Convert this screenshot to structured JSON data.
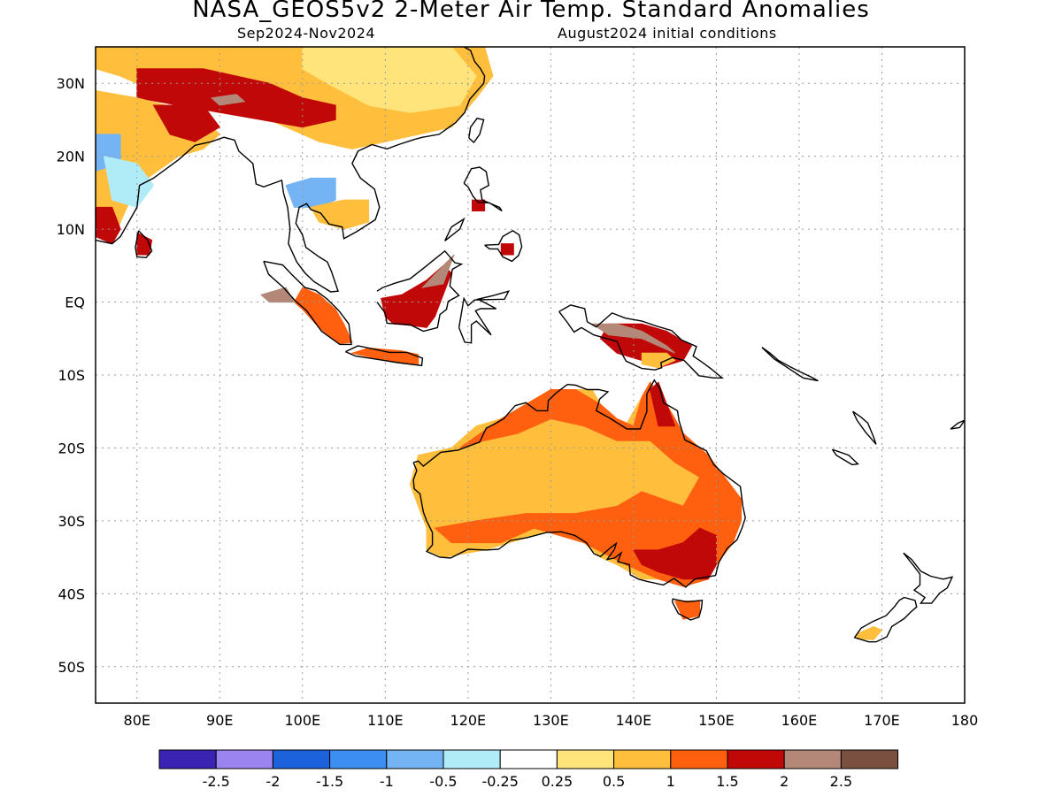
{
  "title": "NASA_GEOS5v2 2-Meter Air Temp. Standard Anomalies",
  "subtitle_left": "Sep2024-Nov2024",
  "subtitle_right": "August2024 initial conditions",
  "map": {
    "lon_range": [
      75,
      180
    ],
    "lat_range": [
      -55,
      35
    ],
    "lat_labels": [
      "30N",
      "20N",
      "10N",
      "EQ",
      "10S",
      "20S",
      "30S",
      "40S",
      "50S"
    ],
    "lat_values": [
      30,
      20,
      10,
      0,
      -10,
      -20,
      -30,
      -40,
      -50
    ],
    "lon_labels": [
      "80E",
      "90E",
      "100E",
      "110E",
      "120E",
      "130E",
      "140E",
      "150E",
      "160E",
      "170E",
      "180"
    ],
    "lon_values": [
      80,
      90,
      100,
      110,
      120,
      130,
      140,
      150,
      160,
      170,
      180
    ],
    "grid": true
  },
  "legend": {
    "colors": [
      "#3a22b2",
      "#9b84f0",
      "#1c62dc",
      "#3c8ef0",
      "#74b4f4",
      "#b0ecf8",
      "#ffffff",
      "#ffe47c",
      "#ffbe3c",
      "#ff6010",
      "#c00808",
      "#b48878",
      "#7a5040"
    ],
    "labels": [
      "-2.5",
      "-2",
      "-1.5",
      "-1",
      "-0.5",
      "-0.25",
      "0.25",
      "0.5",
      "1",
      "1.5",
      "2",
      "2.5"
    ]
  },
  "regions": [
    {
      "name": "australia-interior",
      "color": "#ffbe3c",
      "points": [
        [
          114,
          -21
        ],
        [
          118,
          -20
        ],
        [
          121,
          -17
        ],
        [
          124,
          -16
        ],
        [
          127,
          -14
        ],
        [
          130,
          -12
        ],
        [
          132,
          -12
        ],
        [
          135,
          -12
        ],
        [
          136,
          -14
        ],
        [
          137,
          -16
        ],
        [
          139,
          -17
        ],
        [
          141,
          -13
        ],
        [
          142,
          -11
        ],
        [
          143,
          -13
        ],
        [
          145,
          -16
        ],
        [
          146,
          -19
        ],
        [
          149,
          -21
        ],
        [
          151,
          -24
        ],
        [
          153,
          -27
        ],
        [
          153,
          -30
        ],
        [
          152,
          -33
        ],
        [
          150,
          -36
        ],
        [
          149,
          -38
        ],
        [
          146,
          -39
        ],
        [
          144,
          -38
        ],
        [
          141,
          -38
        ],
        [
          138,
          -36
        ],
        [
          136,
          -35
        ],
        [
          134,
          -33
        ],
        [
          131,
          -31
        ],
        [
          128,
          -32
        ],
        [
          125,
          -33
        ],
        [
          122,
          -34
        ],
        [
          117,
          -35
        ],
        [
          115,
          -34
        ],
        [
          115,
          -31
        ],
        [
          114,
          -28
        ],
        [
          113,
          -25
        ]
      ]
    },
    {
      "name": "australia-orange-north",
      "color": "#ff6010",
      "points": [
        [
          124,
          -16
        ],
        [
          127,
          -14
        ],
        [
          130,
          -12
        ],
        [
          133,
          -12
        ],
        [
          136,
          -14
        ],
        [
          138,
          -16
        ],
        [
          140,
          -17
        ],
        [
          141,
          -13
        ],
        [
          142,
          -11
        ],
        [
          144,
          -14
        ],
        [
          146,
          -18
        ],
        [
          148,
          -21
        ],
        [
          146,
          -22
        ],
        [
          142,
          -19
        ],
        [
          138,
          -19
        ],
        [
          134,
          -17
        ],
        [
          130,
          -16
        ],
        [
          126,
          -18
        ],
        [
          122,
          -19
        ],
        [
          119,
          -20
        ]
      ]
    },
    {
      "name": "australia-orange-east",
      "color": "#ff6010",
      "points": [
        [
          142,
          -19
        ],
        [
          146,
          -18
        ],
        [
          149,
          -21
        ],
        [
          151,
          -24
        ],
        [
          153,
          -27
        ],
        [
          153,
          -30
        ],
        [
          152,
          -33
        ],
        [
          150,
          -36
        ],
        [
          149,
          -38
        ],
        [
          146,
          -39
        ],
        [
          143,
          -38
        ],
        [
          139,
          -36
        ],
        [
          134,
          -33
        ],
        [
          128,
          -31
        ],
        [
          124,
          -33
        ],
        [
          118,
          -33
        ],
        [
          116,
          -31
        ],
        [
          121,
          -30
        ],
        [
          127,
          -29
        ],
        [
          133,
          -29
        ],
        [
          138,
          -28
        ],
        [
          141,
          -26
        ],
        [
          146,
          -28
        ],
        [
          148,
          -24
        ],
        [
          145,
          -22
        ]
      ]
    },
    {
      "name": "australia-red-southeast",
      "color": "#c00808",
      "points": [
        [
          140,
          -34
        ],
        [
          143,
          -34
        ],
        [
          146,
          -33
        ],
        [
          148,
          -31
        ],
        [
          150,
          -32
        ],
        [
          150,
          -36
        ],
        [
          149,
          -38
        ],
        [
          146,
          -38
        ],
        [
          143,
          -37
        ],
        [
          141,
          -36
        ]
      ]
    },
    {
      "name": "australia-red-cape",
      "color": "#c00808",
      "points": [
        [
          142,
          -12
        ],
        [
          143,
          -11
        ],
        [
          144,
          -14
        ],
        [
          145,
          -17
        ],
        [
          143,
          -17
        ]
      ]
    },
    {
      "name": "tasmania",
      "color": "#ff6010",
      "points": [
        [
          145,
          -41
        ],
        [
          148,
          -41
        ],
        [
          148,
          -43
        ],
        [
          146,
          -43.5
        ]
      ]
    },
    {
      "name": "borneo-red",
      "color": "#c00808",
      "points": [
        [
          109.5,
          0.5
        ],
        [
          112,
          1
        ],
        [
          115,
          3
        ],
        [
          117,
          5
        ],
        [
          118,
          4
        ],
        [
          117,
          1
        ],
        [
          116,
          -2
        ],
        [
          115,
          -3.5
        ],
        [
          113,
          -3.2
        ],
        [
          111,
          -3
        ],
        [
          110,
          -2
        ]
      ]
    },
    {
      "name": "borneo-brown",
      "color": "#b48878",
      "points": [
        [
          114.5,
          2
        ],
        [
          117,
          5
        ],
        [
          118.3,
          6.5
        ],
        [
          117,
          2.5
        ]
      ]
    },
    {
      "name": "sumatra",
      "color": "#ff6010",
      "points": [
        [
          100,
          2
        ],
        [
          102,
          1
        ],
        [
          104,
          -1
        ],
        [
          105,
          -3
        ],
        [
          106,
          -5.5
        ],
        [
          104.5,
          -5.7
        ],
        [
          102,
          -3.5
        ],
        [
          100,
          -1
        ],
        [
          99,
          0
        ]
      ]
    },
    {
      "name": "sumatra-brown",
      "color": "#b48878",
      "points": [
        [
          95,
          1
        ],
        [
          98,
          2
        ],
        [
          99,
          0
        ],
        [
          96,
          0
        ]
      ]
    },
    {
      "name": "java",
      "color": "#ff6010",
      "points": [
        [
          108,
          -6.3
        ],
        [
          112,
          -6.7
        ],
        [
          114,
          -7.2
        ],
        [
          114,
          -8.5
        ],
        [
          110,
          -8
        ],
        [
          106,
          -7
        ]
      ]
    },
    {
      "name": "new-guinea-red",
      "color": "#c00808",
      "points": [
        [
          137,
          -3
        ],
        [
          141,
          -3
        ],
        [
          144,
          -4
        ],
        [
          147,
          -6
        ],
        [
          146,
          -8
        ],
        [
          143,
          -9
        ],
        [
          141,
          -8
        ],
        [
          138,
          -7
        ],
        [
          136,
          -5
        ]
      ]
    },
    {
      "name": "new-guinea-brown",
      "color": "#b48878",
      "points": [
        [
          135,
          -3
        ],
        [
          138,
          -3
        ],
        [
          141,
          -4
        ],
        [
          144,
          -6
        ],
        [
          145,
          -7
        ],
        [
          141,
          -5
        ],
        [
          137,
          -4.5
        ]
      ]
    },
    {
      "name": "new-guinea-orange",
      "color": "#ffbe3c",
      "points": [
        [
          141,
          -7
        ],
        [
          144,
          -7
        ],
        [
          145,
          -8
        ],
        [
          143,
          -9
        ],
        [
          141,
          -8.5
        ]
      ]
    },
    {
      "name": "nz-south",
      "color": "#ffbe3c",
      "points": [
        [
          167,
          -45.5
        ],
        [
          169,
          -44.5
        ],
        [
          170,
          -45
        ],
        [
          169,
          -46.3
        ],
        [
          167,
          -46.2
        ]
      ]
    },
    {
      "name": "asia-band",
      "color": "#ffbe3c",
      "points": [
        [
          75,
          35
        ],
        [
          122,
          35
        ],
        [
          123,
          31
        ],
        [
          121,
          28
        ],
        [
          118,
          24
        ],
        [
          110,
          22
        ],
        [
          106,
          21
        ],
        [
          102,
          22
        ],
        [
          98,
          24
        ],
        [
          94,
          26
        ],
        [
          90,
          27
        ],
        [
          86,
          29
        ],
        [
          82,
          29
        ],
        [
          78,
          31
        ],
        [
          75,
          32
        ]
      ]
    },
    {
      "name": "china-yellow",
      "color": "#ffe47c",
      "points": [
        [
          100,
          35
        ],
        [
          118,
          35
        ],
        [
          121,
          31
        ],
        [
          119,
          27
        ],
        [
          113,
          26
        ],
        [
          108,
          27
        ],
        [
          103,
          30
        ],
        [
          100,
          32
        ]
      ]
    },
    {
      "name": "tibet-red",
      "color": "#c00808",
      "points": [
        [
          80,
          32
        ],
        [
          88,
          32
        ],
        [
          96,
          30
        ],
        [
          100,
          28
        ],
        [
          104,
          27
        ],
        [
          104,
          25
        ],
        [
          100,
          24
        ],
        [
          95,
          25
        ],
        [
          90,
          26
        ],
        [
          85,
          27
        ],
        [
          80,
          28
        ]
      ]
    },
    {
      "name": "himalaya-brown",
      "color": "#b48878",
      "points": [
        [
          89,
          28
        ],
        [
          92,
          28.5
        ],
        [
          93,
          27.5
        ],
        [
          90,
          27
        ]
      ]
    },
    {
      "name": "india-orange",
      "color": "#ffbe3c",
      "points": [
        [
          75,
          29
        ],
        [
          80,
          28
        ],
        [
          87,
          26
        ],
        [
          90,
          23
        ],
        [
          88,
          21
        ],
        [
          85,
          20
        ],
        [
          80,
          16
        ],
        [
          78,
          11
        ],
        [
          77,
          8
        ],
        [
          75,
          12
        ]
      ]
    },
    {
      "name": "india-red-north",
      "color": "#c00808",
      "points": [
        [
          82,
          27
        ],
        [
          88,
          27
        ],
        [
          90,
          24
        ],
        [
          87,
          22
        ],
        [
          84,
          23
        ]
      ]
    },
    {
      "name": "india-blue",
      "color": "#74b4f4",
      "points": [
        [
          75,
          23
        ],
        [
          78,
          23
        ],
        [
          78,
          19
        ],
        [
          75,
          18
        ]
      ]
    },
    {
      "name": "india-lightblue",
      "color": "#b0ecf8",
      "points": [
        [
          76,
          20
        ],
        [
          80,
          19
        ],
        [
          82,
          16
        ],
        [
          80,
          13
        ],
        [
          77,
          14
        ]
      ]
    },
    {
      "name": "india-red-south",
      "color": "#c00808",
      "points": [
        [
          75,
          13
        ],
        [
          77,
          13
        ],
        [
          78,
          10
        ],
        [
          77,
          8
        ],
        [
          75,
          9
        ]
      ]
    },
    {
      "name": "sri-lanka",
      "color": "#c00808",
      "points": [
        [
          80,
          9.5
        ],
        [
          81.8,
          8.5
        ],
        [
          81.5,
          6.5
        ],
        [
          80,
          6.5
        ]
      ]
    },
    {
      "name": "indochina-blue",
      "color": "#74b4f4",
      "points": [
        [
          98,
          16
        ],
        [
          101,
          17
        ],
        [
          104,
          17
        ],
        [
          104,
          14
        ],
        [
          102,
          13
        ],
        [
          99,
          13
        ]
      ]
    },
    {
      "name": "indochina-orange",
      "color": "#ffbe3c",
      "points": [
        [
          101,
          13
        ],
        [
          105,
          14
        ],
        [
          108,
          14
        ],
        [
          108,
          11
        ],
        [
          105,
          10
        ],
        [
          102,
          11
        ]
      ]
    },
    {
      "name": "philippines-red",
      "color": "#c00808",
      "points": [
        [
          120.5,
          14
        ],
        [
          122,
          14
        ],
        [
          122,
          12.5
        ],
        [
          120.5,
          12.5
        ]
      ]
    },
    {
      "name": "mindanao-red",
      "color": "#c00808",
      "points": [
        [
          124,
          8
        ],
        [
          125.5,
          8
        ],
        [
          125.5,
          6.5
        ],
        [
          124,
          6.5
        ]
      ]
    }
  ]
}
